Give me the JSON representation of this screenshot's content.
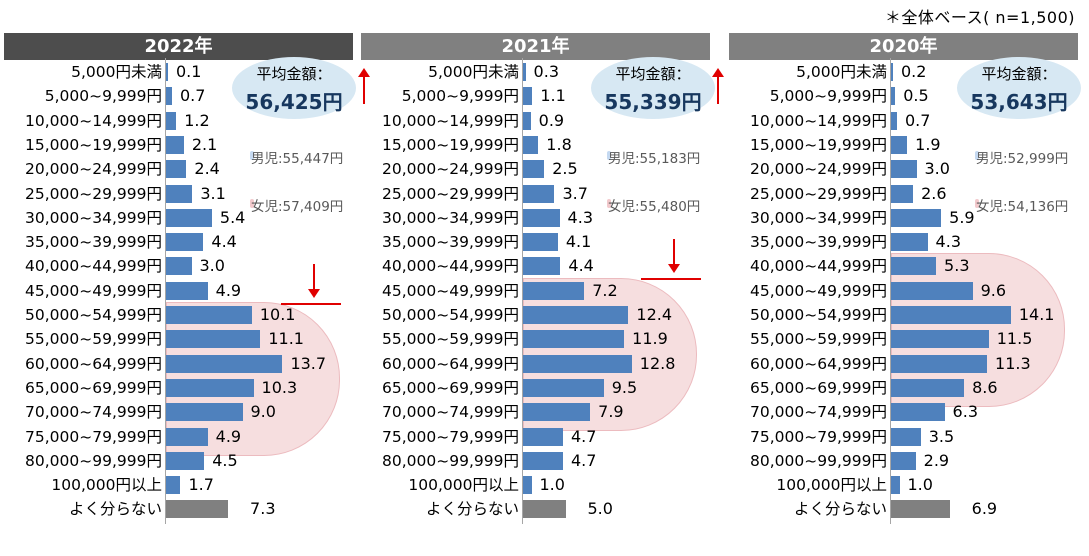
{
  "note": "＊全体ベース( n=1,500)",
  "avg_title": "平均金額：",
  "chart_data": [
    {
      "type": "bar",
      "title": "2022年",
      "average": "56,425円",
      "average_trend": "up",
      "boys": "男児:55,447円",
      "girls": "女児:57,409円",
      "categories": [
        "5,000円未満",
        "5,000~9,999円",
        "10,000~14,999円",
        "15,000~19,999円",
        "20,000~24,999円",
        "25,000~29,999円",
        "30,000~34,999円",
        "35,000~39,999円",
        "40,000~44,999円",
        "45,000~49,999円",
        "50,000~54,999円",
        "55,000~59,999円",
        "60,000~64,999円",
        "65,000~69,999円",
        "70,000~74,999円",
        "75,000~79,999円",
        "80,000~99,999円",
        "100,000円以上",
        "よく分らない"
      ],
      "values": [
        0.1,
        0.7,
        1.2,
        2.1,
        2.4,
        3.1,
        5.4,
        4.4,
        3.0,
        4.9,
        10.1,
        11.1,
        13.7,
        10.3,
        9.0,
        4.9,
        4.5,
        1.7,
        7.3
      ],
      "value_labels": [
        "0.1",
        "0.7",
        "1.2",
        "2.1",
        "2.4",
        "3.1",
        "5.4",
        "4.4",
        "3.0",
        "4.9",
        "10.1",
        "11.1",
        "13.7",
        "10.3",
        "9.0",
        "4.9",
        "4.5",
        "1.7",
        "7.3"
      ],
      "highlight_range": [
        "50,000~54,999円",
        "75,000~79,999円"
      ],
      "arrow_down_after": "45,000~49,999円",
      "unit": "%"
    },
    {
      "type": "bar",
      "title": "2021年",
      "average": "55,339円",
      "average_trend": "up",
      "boys": "男児:55,183円",
      "girls": "女児:55,480円",
      "categories": [
        "5,000円未満",
        "5,000~9,999円",
        "10,000~14,999円",
        "15,000~19,999円",
        "20,000~24,999円",
        "25,000~29,999円",
        "30,000~34,999円",
        "35,000~39,999円",
        "40,000~44,999円",
        "45,000~49,999円",
        "50,000~54,999円",
        "55,000~59,999円",
        "60,000~64,999円",
        "65,000~69,999円",
        "70,000~74,999円",
        "75,000~79,999円",
        "80,000~99,999円",
        "100,000円以上",
        "よく分らない"
      ],
      "values": [
        0.3,
        1.1,
        0.9,
        1.8,
        2.5,
        3.7,
        4.3,
        4.1,
        4.4,
        7.2,
        12.4,
        11.9,
        12.8,
        9.5,
        7.9,
        4.7,
        4.7,
        1.0,
        5.0
      ],
      "value_labels": [
        "0.3",
        "1.1",
        "0.9",
        "1.8",
        "2.5",
        "3.7",
        "4.3",
        "4.1",
        "4.4",
        "7.2",
        "12.4",
        "11.9",
        "12.8",
        "9.5",
        "7.9",
        "4.7",
        "4.7",
        "1.0",
        "5.0"
      ],
      "highlight_range": [
        "45,000~49,999円",
        "70,000~74,999円"
      ],
      "arrow_down_after": "40,000~44,999円",
      "unit": "%"
    },
    {
      "type": "bar",
      "title": "2020年",
      "average": "53,643円",
      "average_trend": "",
      "boys": "男児:52,999円",
      "girls": "女児:54,136円",
      "categories": [
        "5,000円未満",
        "5,000~9,999円",
        "10,000~14,999円",
        "15,000~19,999円",
        "20,000~24,999円",
        "25,000~29,999円",
        "30,000~34,999円",
        "35,000~39,999円",
        "40,000~44,999円",
        "45,000~49,999円",
        "50,000~54,999円",
        "55,000~59,999円",
        "60,000~64,999円",
        "65,000~69,999円",
        "70,000~74,999円",
        "75,000~79,999円",
        "80,000~99,999円",
        "100,000円以上",
        "よく分らない"
      ],
      "values": [
        0.2,
        0.5,
        0.7,
        1.9,
        3.0,
        2.6,
        5.9,
        4.3,
        5.3,
        9.6,
        14.1,
        11.5,
        11.3,
        8.6,
        6.3,
        3.5,
        2.9,
        1.0,
        6.9
      ],
      "value_labels": [
        "0.2",
        "0.5",
        "0.7",
        "1.9",
        "3.0",
        "2.6",
        "5.9",
        "4.3",
        "5.3",
        "9.6",
        "14.1",
        "11.5",
        "11.3",
        "8.6",
        "6.3",
        "3.5",
        "2.9",
        "1.0",
        "6.9"
      ],
      "highlight_range": [
        "40,000~44,999円",
        "65,000~69,999円"
      ],
      "arrow_down_after": "",
      "unit": "%"
    }
  ]
}
